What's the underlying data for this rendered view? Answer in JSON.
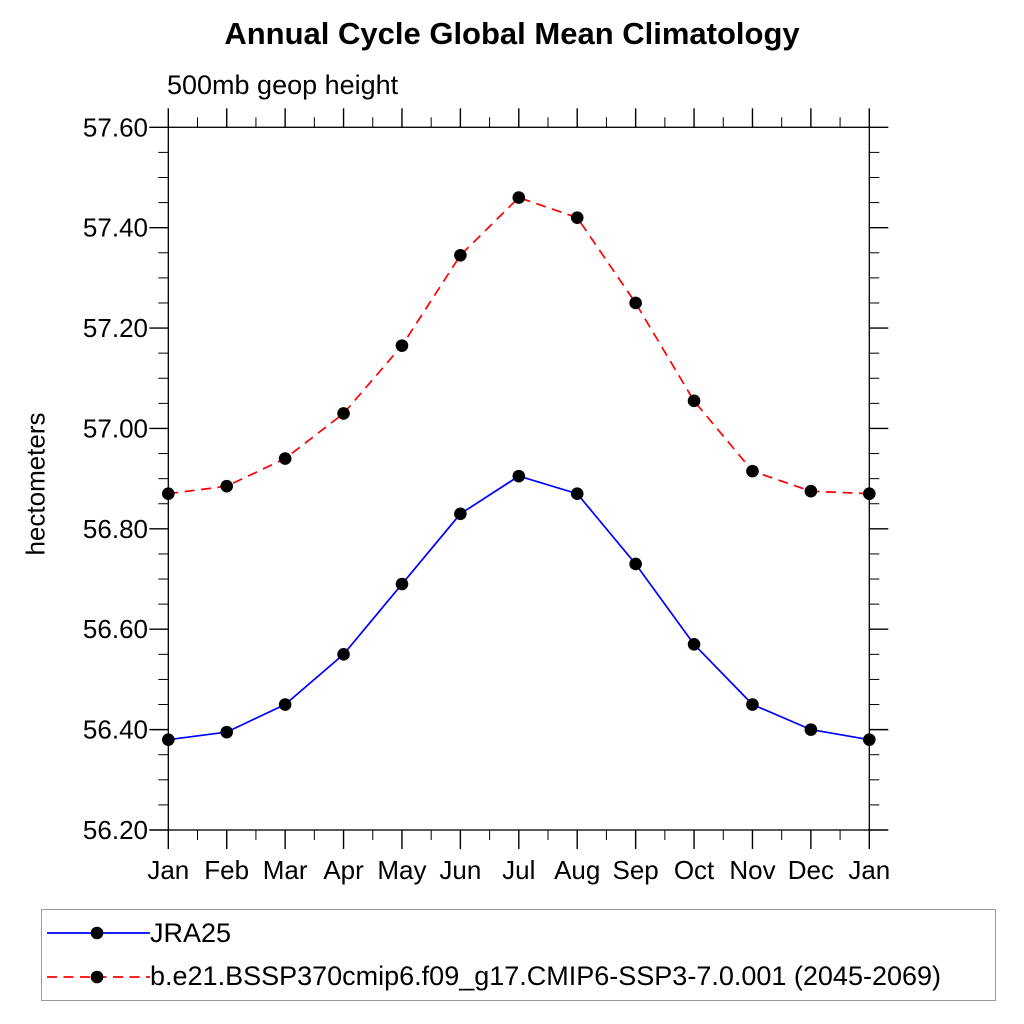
{
  "chart_data": {
    "type": "line",
    "title": "Annual Cycle Global Mean Climatology",
    "subtitle": "500mb geop height",
    "xlabel": "",
    "ylabel": "hectometers",
    "categories": [
      "Jan",
      "Feb",
      "Mar",
      "Apr",
      "May",
      "Jun",
      "Jul",
      "Aug",
      "Sep",
      "Oct",
      "Nov",
      "Dec",
      "Jan"
    ],
    "series": [
      {
        "name": "JRA25",
        "color": "#0000ff",
        "line_style": "solid",
        "marker": "circle",
        "marker_color": "#000000",
        "values": [
          56.38,
          56.395,
          56.45,
          56.55,
          56.69,
          56.83,
          56.905,
          56.87,
          56.73,
          56.57,
          56.45,
          56.4,
          56.38
        ]
      },
      {
        "name": "b.e21.BSSP370cmip6.f09_g17.CMIP6-SSP3-7.0.001 (2045-2069)",
        "color": "#ff0000",
        "line_style": "dashed",
        "marker": "circle",
        "marker_color": "#000000",
        "values": [
          56.87,
          56.885,
          56.94,
          57.03,
          57.165,
          57.345,
          57.46,
          57.42,
          57.25,
          57.055,
          56.915,
          56.875,
          56.87
        ]
      }
    ],
    "ylim": [
      56.2,
      57.6
    ],
    "ytick_interval": 0.2,
    "yminor_interval": 0.05,
    "ytick_format_decimals": 2,
    "grid": false,
    "axis_color": "#000000",
    "legend_position": "bottom"
  }
}
